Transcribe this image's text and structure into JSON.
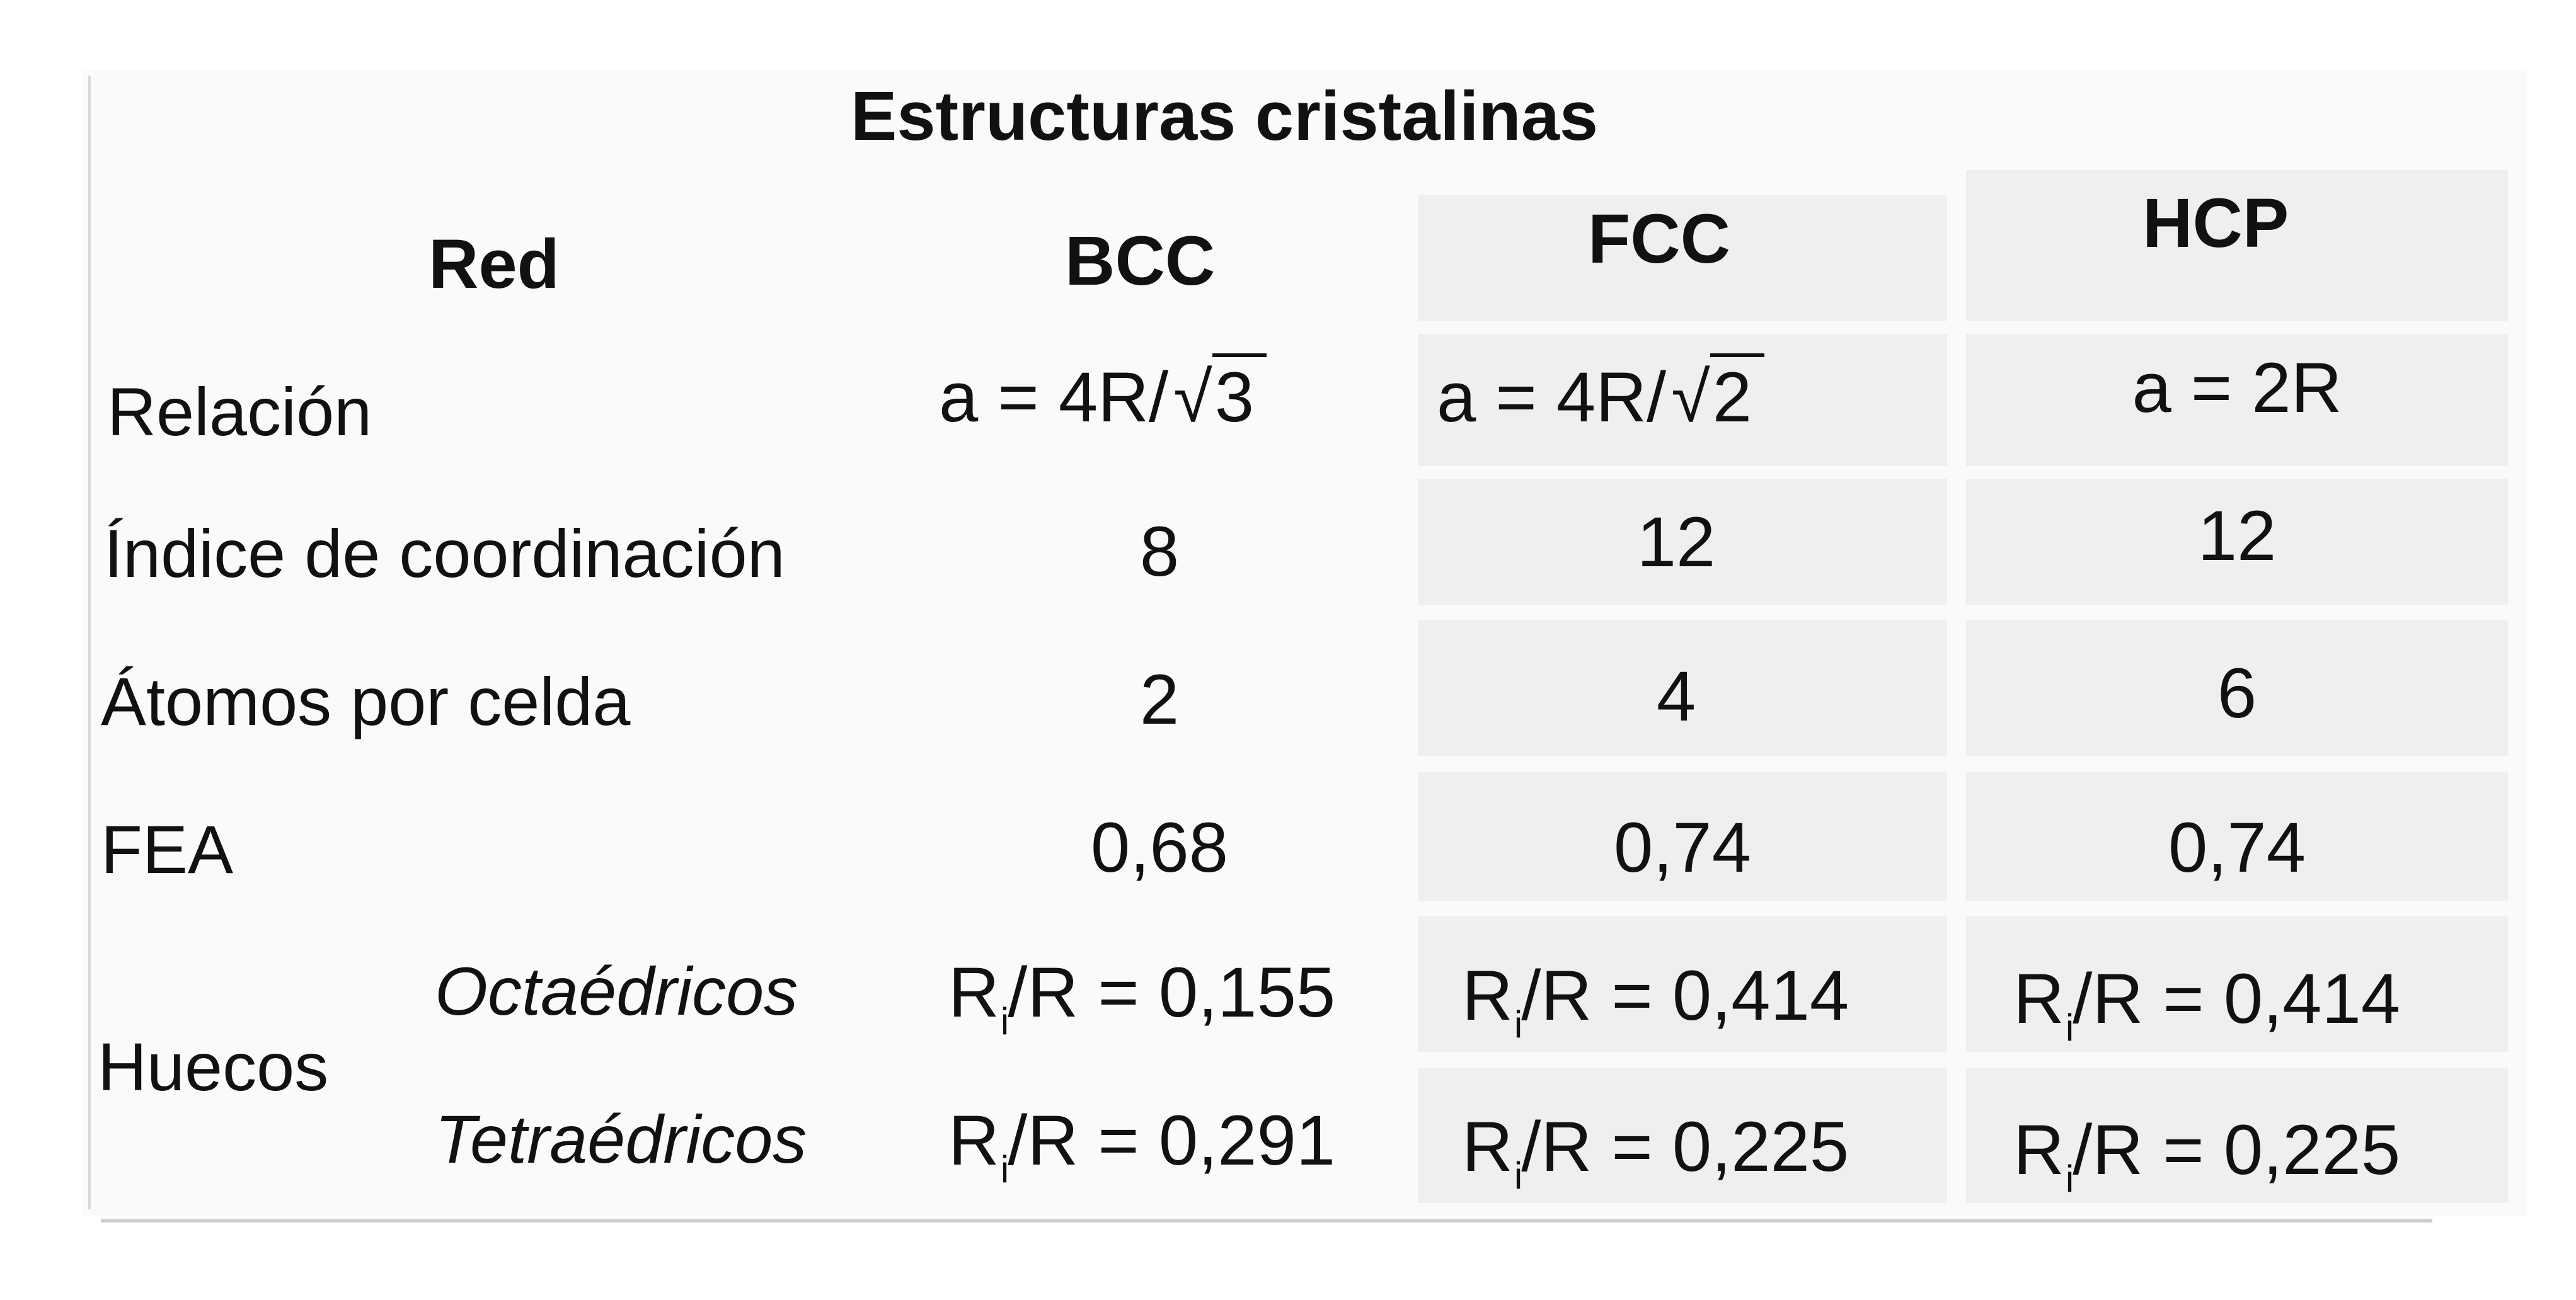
{
  "title": "Estructuras cristalinas",
  "header": {
    "red": "Red",
    "bcc": "BCC",
    "fcc": "FCC",
    "hcp": "HCP"
  },
  "rows": {
    "relacion": {
      "label": "Relación",
      "bcc_prefix": "a = 4R/",
      "bcc_root": "3",
      "fcc_prefix": "a = 4R/",
      "fcc_root": "2",
      "hcp": "a = 2R"
    },
    "indice": {
      "label": "Índice de coordinación",
      "bcc": "8",
      "fcc": "12",
      "hcp": "12"
    },
    "atomos": {
      "label": "Átomos por celda",
      "bcc": "2",
      "fcc": "4",
      "hcp": "6"
    },
    "fea": {
      "label": "FEA",
      "bcc": "0,68",
      "fcc": "0,74",
      "hcp": "0,74"
    },
    "huecos": {
      "label": "Huecos",
      "octa_label": "Octaédricos",
      "tetra_label": "Tetraédricos",
      "ri": "R",
      "ri_sub": "i",
      "octa": {
        "bcc": "/R = 0,155",
        "fcc": "/R = 0,414",
        "hcp": "/R = 0,414"
      },
      "tetra": {
        "bcc": "/R = 0,291",
        "fcc": "/R = 0,225",
        "hcp": "/R = 0,225"
      }
    }
  }
}
